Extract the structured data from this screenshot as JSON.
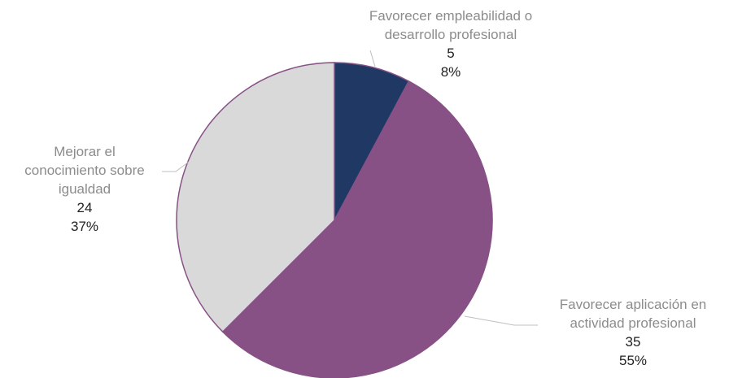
{
  "chart_data": {
    "type": "pie",
    "title": "",
    "start_angle_deg": 0,
    "direction": "clockwise",
    "legend": "none",
    "slices": [
      {
        "label_lines": [
          "Favorecer empleabilidad o",
          "desarrollo profesional"
        ],
        "value": 5,
        "value_label": "5",
        "percent_label": "8%",
        "color": "#1f3864"
      },
      {
        "label_lines": [
          "Favorecer aplicación en",
          "actividad profesional"
        ],
        "value": 35,
        "value_label": "35",
        "percent_label": "55%",
        "color": "#875186"
      },
      {
        "label_lines": [
          "Mejorar el",
          "conocimiento sobre",
          "igualdad"
        ],
        "value": 24,
        "value_label": "24",
        "percent_label": "37%",
        "color": "#d9d9d9"
      }
    ],
    "slice_border_color": "#875186",
    "leader_line_color": "#bfbfbf"
  }
}
